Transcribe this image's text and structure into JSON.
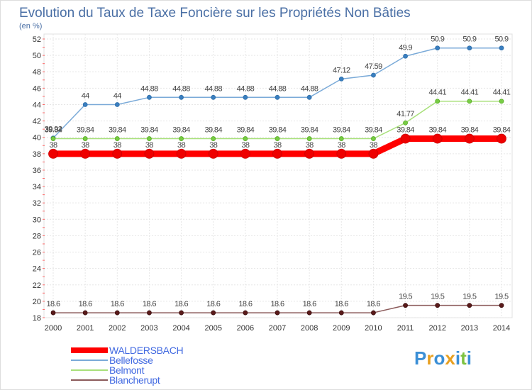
{
  "chart_data": {
    "type": "line",
    "title": "Evolution du Taux de Taxe Foncière sur les Propriétés Non Bâties",
    "ylabel": "(en %)",
    "xlabel": "",
    "ylim": [
      18,
      52
    ],
    "yticks": [
      18,
      20,
      22,
      24,
      26,
      28,
      30,
      32,
      34,
      36,
      38,
      40,
      42,
      44,
      46,
      48,
      50,
      52
    ],
    "x": [
      "2000",
      "2001",
      "2002",
      "2003",
      "2004",
      "2005",
      "2006",
      "2007",
      "2008",
      "2009",
      "2010",
      "2011",
      "2012",
      "2013",
      "2014"
    ],
    "grid": true,
    "series": [
      {
        "name": "WALDERSBACH",
        "color": "#ff0000",
        "values": [
          38,
          38,
          38,
          38,
          38,
          38,
          38,
          38,
          38,
          38,
          38,
          39.84,
          39.84,
          39.84,
          39.84
        ],
        "labels": [
          "38",
          "38",
          "38",
          "38",
          "38",
          "38",
          "38",
          "38",
          "38",
          "38",
          "38",
          "39.84",
          "39.84",
          "39.84",
          "39.84"
        ]
      },
      {
        "name": "Bellefosse",
        "color": "#6e9fd0",
        "values": [
          39.92,
          44,
          44,
          44.88,
          44.88,
          44.88,
          44.88,
          44.88,
          44.88,
          47.12,
          47.59,
          49.9,
          50.9,
          50.9,
          50.9
        ],
        "labels": [
          "39.92",
          "44",
          "44",
          "44.88",
          "44.88",
          "44.88",
          "44.88",
          "44.88",
          "44.88",
          "47.12",
          "47.59",
          "49.9",
          "50.9",
          "50.9",
          "50.9"
        ]
      },
      {
        "name": "Belmont",
        "color": "#99dd66",
        "values": [
          39.84,
          39.84,
          39.84,
          39.84,
          39.84,
          39.84,
          39.84,
          39.84,
          39.84,
          39.84,
          39.84,
          41.77,
          44.41,
          44.41,
          44.41
        ],
        "labels": [
          "39.84",
          "39.84",
          "39.84",
          "39.84",
          "39.84",
          "39.84",
          "39.84",
          "39.84",
          "39.84",
          "39.84",
          "39.84",
          "41.77",
          "44.41",
          "44.41",
          "44.41"
        ]
      },
      {
        "name": "Blancherupt",
        "color": "#8b4a4a",
        "values": [
          18.6,
          18.6,
          18.6,
          18.6,
          18.6,
          18.6,
          18.6,
          18.6,
          18.6,
          18.6,
          18.6,
          19.5,
          19.5,
          19.5,
          19.5
        ],
        "labels": [
          "18.6",
          "18.6",
          "18.6",
          "18.6",
          "18.6",
          "18.6",
          "18.6",
          "18.6",
          "18.6",
          "18.6",
          "18.6",
          "19.5",
          "19.5",
          "19.5",
          "19.5"
        ]
      }
    ],
    "legend": "bottom-left"
  },
  "logo": {
    "text": "Proxiti",
    "letters": [
      "P",
      "r",
      "o",
      "x",
      "i",
      "t",
      "i"
    ],
    "colors": [
      "#3b8fd6",
      "#e8a020",
      "#3b8fd6",
      "#e8a020",
      "#3b8fd6",
      "#7dc241",
      "#3b8fd6"
    ]
  }
}
